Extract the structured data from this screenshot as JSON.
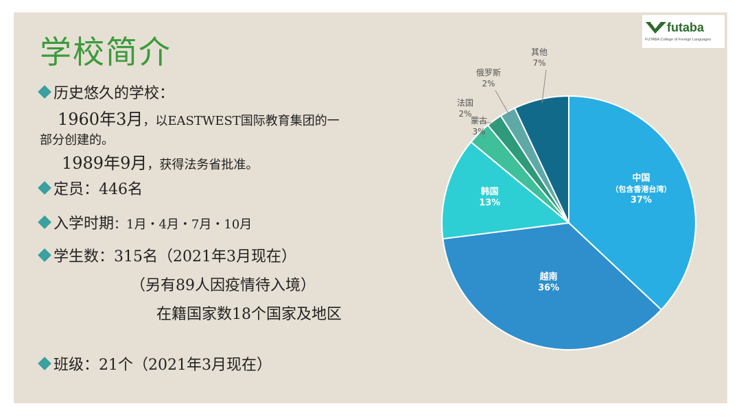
{
  "title": "学校简介",
  "logo": {
    "word": "futaba",
    "tagline": "FUTABA College of Foreign Languages"
  },
  "content": {
    "history_heading": "历史悠久的学校：",
    "history_line1_year": "1960年3月",
    "history_line1_rest": "，以EASTWEST国际教育集团的一",
    "history_line2": "部分创建的。",
    "history_line3_year": "1989年9月",
    "history_line3_rest": "，获得法务省批准。",
    "capacity": "定员：446名",
    "enrollment_label": "入学时期",
    "enrollment_value": "：1月・4月・7月・10月",
    "students": "学生数：315名（2021年3月现在）",
    "students_note1": "（另有89人因疫情待入境）",
    "students_note2": "在籍国家数18个国家及地区",
    "classes": "班级：21个（2021年3月现在）"
  },
  "chart_data": {
    "type": "pie",
    "start_angle_deg": 0,
    "direction": "clockwise",
    "slices": [
      {
        "label": "中国",
        "sublabel": "（包含香港台湾）",
        "value": 37,
        "pct": "37%",
        "color": "#29aee3",
        "label_pos": "inside"
      },
      {
        "label": "越南",
        "sublabel": "",
        "value": 36,
        "pct": "36%",
        "color": "#2e8fcc",
        "label_pos": "inside"
      },
      {
        "label": "韩国",
        "sublabel": "",
        "value": 13,
        "pct": "13%",
        "color": "#2ecfd4",
        "label_pos": "inside"
      },
      {
        "label": "蒙古",
        "sublabel": "",
        "value": 3,
        "pct": "3%",
        "color": "#3fbf9a",
        "label_pos": "outside"
      },
      {
        "label": "法国",
        "sublabel": "",
        "value": 2,
        "pct": "2%",
        "color": "#2e9a7a",
        "label_pos": "outside"
      },
      {
        "label": "俄罗斯",
        "sublabel": "",
        "value": 2,
        "pct": "2%",
        "color": "#5fa8a8",
        "label_pos": "outside"
      },
      {
        "label": "其他",
        "sublabel": "",
        "value": 7,
        "pct": "7%",
        "color": "#126a8a",
        "label_pos": "outside"
      }
    ]
  }
}
